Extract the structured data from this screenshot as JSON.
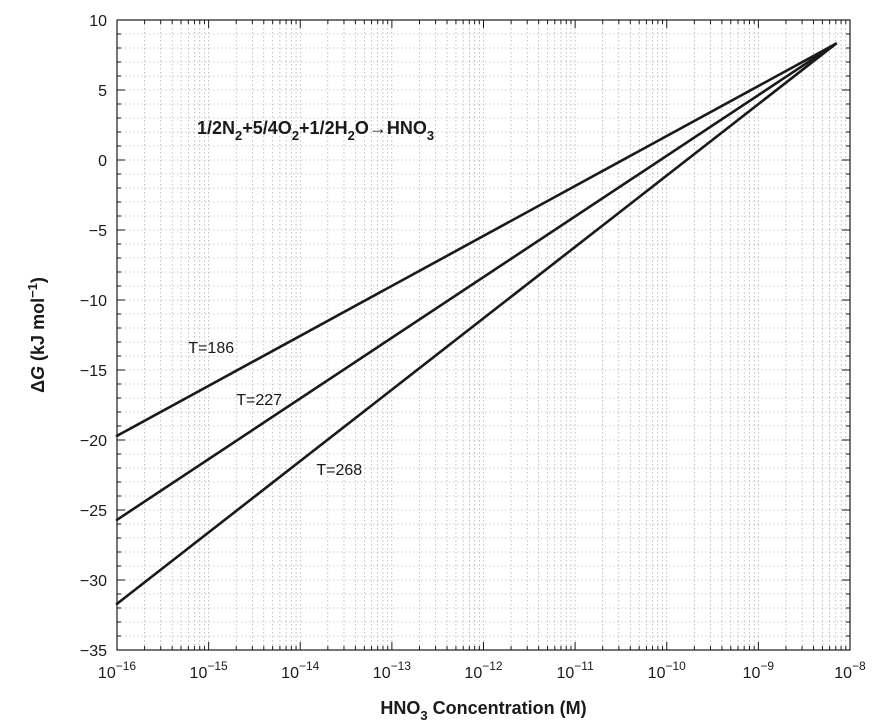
{
  "chart_data": {
    "type": "line",
    "xlabel": {
      "main": "HNO",
      "sub": "3",
      "rest": " Concentration (M)"
    },
    "ylabel": {
      "delta": "Δ",
      "var": "G",
      "rest": " (kJ mol",
      "sup": "−1",
      "close": ")"
    },
    "annotation": [
      {
        "text": "1/2N",
        "sub": false
      },
      {
        "text": "2",
        "sub": true
      },
      {
        "text": "+5/4O",
        "sub": false
      },
      {
        "text": "2",
        "sub": true
      },
      {
        "text": "+1/2H",
        "sub": false
      },
      {
        "text": "2",
        "sub": true
      },
      {
        "text": "O→HNO",
        "sub": false
      },
      {
        "text": "3",
        "sub": true
      }
    ],
    "x_scale": "log",
    "xlim": [
      1e-16,
      1e-08
    ],
    "ylim": [
      -35,
      10
    ],
    "x_ticks": [
      {
        "base": "10",
        "exp": "−16"
      },
      {
        "base": "10",
        "exp": "−15"
      },
      {
        "base": "10",
        "exp": "−14"
      },
      {
        "base": "10",
        "exp": "−13"
      },
      {
        "base": "10",
        "exp": "−12"
      },
      {
        "base": "10",
        "exp": "−11"
      },
      {
        "base": "10",
        "exp": "−10"
      },
      {
        "base": "10",
        "exp": "−9"
      },
      {
        "base": "10",
        "exp": "−8"
      }
    ],
    "y_ticks": [
      "10",
      "5",
      "0",
      "−5",
      "−10",
      "−15",
      "−20",
      "−25",
      "−30",
      "−35"
    ],
    "y_tick_values": [
      10,
      5,
      0,
      -5,
      -10,
      -15,
      -20,
      -25,
      -30,
      -35
    ],
    "grid": true,
    "series": [
      {
        "name": "T=186",
        "x": [
          1e-16,
          7e-09
        ],
        "y": [
          -19.7,
          8.3
        ]
      },
      {
        "name": "T=227",
        "x": [
          1e-16,
          7e-09
        ],
        "y": [
          -25.7,
          8.3
        ]
      },
      {
        "name": "T=268",
        "x": [
          1e-16,
          7e-09
        ],
        "y": [
          -31.7,
          8.3
        ]
      }
    ],
    "series_label_anchor": [
      {
        "x": 6e-16,
        "y": -13.8
      },
      {
        "x": 2e-15,
        "y": -17.5
      },
      {
        "x": 1.5e-14,
        "y": -22.5
      }
    ],
    "colors": {
      "line": "#1a1a1a",
      "grid": "#9a9a9a",
      "axis": "#1a1a1a"
    }
  }
}
